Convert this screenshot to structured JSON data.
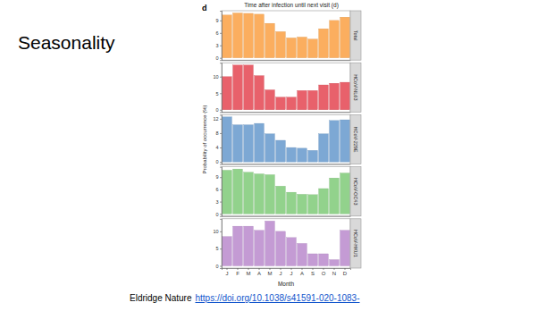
{
  "slide_title": "Seasonality",
  "citation": {
    "text": "Eldridge Nature",
    "link": "https://doi.org/10.1038/s41591-020-1083-"
  },
  "figure": {
    "panel": "d",
    "title": "Time after infection until next visit (d)",
    "y_label": "Probability of occurrence (%)",
    "x_label": "Month"
  },
  "chart_data": [
    {
      "type": "bar",
      "title": "Total",
      "categories": [
        "J",
        "F",
        "M",
        "A",
        "M",
        "J",
        "J",
        "A",
        "S",
        "O",
        "N",
        "D"
      ],
      "values": [
        10.3,
        10.8,
        10.7,
        10.5,
        8.3,
        6.3,
        4.8,
        5.0,
        4.5,
        7.0,
        9.0,
        9.8
      ],
      "color": "#fbae5f",
      "ylim": [
        -0.54,
        11.34
      ],
      "yticks": [
        0,
        3,
        6,
        9
      ],
      "tick_labels": "y"
    },
    {
      "type": "bar",
      "title": "HCoV-NL63",
      "categories": [
        "J",
        "F",
        "M",
        "A",
        "M",
        "J",
        "J",
        "A",
        "S",
        "O",
        "N",
        "D"
      ],
      "values": [
        10.0,
        13.5,
        13.5,
        10.3,
        6.0,
        3.8,
        3.8,
        5.8,
        5.8,
        7.5,
        8.0,
        8.3
      ],
      "color": "#e8616b",
      "ylim": [
        -0.7,
        14.2
      ],
      "yticks": [
        0,
        5,
        10
      ],
      "tick_labels": "y"
    },
    {
      "type": "bar",
      "title": "HCoV-229E",
      "categories": [
        "J",
        "F",
        "M",
        "A",
        "M",
        "J",
        "J",
        "A",
        "S",
        "O",
        "N",
        "D"
      ],
      "values": [
        12.5,
        10.3,
        10.3,
        10.7,
        7.8,
        6.0,
        4.0,
        3.8,
        3.2,
        7.8,
        11.5,
        11.7
      ],
      "color": "#7da8d4",
      "ylim": [
        -0.6,
        13.1
      ],
      "yticks": [
        0,
        4,
        8,
        12
      ],
      "tick_labels": "y"
    },
    {
      "type": "bar",
      "title": "HCoV-OC43",
      "categories": [
        "J",
        "F",
        "M",
        "A",
        "M",
        "J",
        "J",
        "A",
        "S",
        "O",
        "N",
        "D"
      ],
      "values": [
        10.7,
        11.0,
        10.2,
        9.8,
        9.6,
        6.8,
        5.3,
        4.8,
        4.7,
        6.2,
        8.8,
        10.0
      ],
      "color": "#92d28c",
      "ylim": [
        -0.55,
        11.55
      ],
      "yticks": [
        0,
        3,
        6,
        9
      ],
      "tick_labels": "y"
    },
    {
      "type": "bar",
      "title": "HCoV-HKU1",
      "categories": [
        "J",
        "F",
        "M",
        "A",
        "M",
        "J",
        "J",
        "A",
        "S",
        "O",
        "N",
        "D"
      ],
      "values": [
        8.5,
        11.5,
        11.5,
        10.3,
        13.0,
        10.0,
        8.2,
        6.5,
        3.5,
        3.5,
        1.8,
        10.3
      ],
      "color": "#c49bd4",
      "ylim": [
        -0.65,
        13.65
      ],
      "yticks": [
        0,
        5,
        10
      ],
      "x_label": "Month"
    }
  ]
}
